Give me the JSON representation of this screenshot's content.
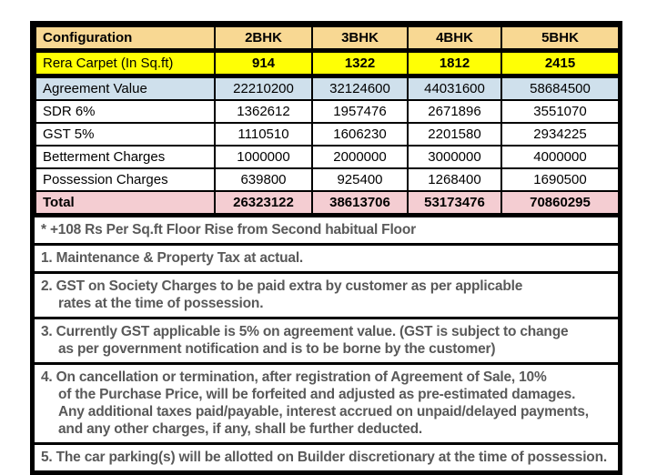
{
  "colors": {
    "header_bg": "#F8D893",
    "carpet_bg": "#FFFF05",
    "agreement_bg": "#CFE0EC",
    "total_bg": "#F4CDD2",
    "border": "#000000",
    "table_text": "#000000",
    "note_text": "#595959"
  },
  "table": {
    "header": {
      "label": "Configuration",
      "columns": [
        "2BHK",
        "3BHK",
        "4BHK",
        "5BHK"
      ]
    },
    "rows": [
      {
        "label": "Rera Carpet (In Sq.ft)",
        "values": [
          "914",
          "1322",
          "1812",
          "2415"
        ],
        "bg": "carpet"
      },
      {
        "label": "Agreement Value",
        "values": [
          "22210200",
          "32124600",
          "44031600",
          "58684500"
        ],
        "bg": "agreement"
      },
      {
        "label": "SDR 6%",
        "values": [
          "1362612",
          "1957476",
          "2671896",
          "3551070"
        ],
        "bg": "white"
      },
      {
        "label": "GST 5%",
        "values": [
          "1110510",
          "1606230",
          "2201580",
          "2934225"
        ],
        "bg": "white"
      },
      {
        "label": "Betterment Charges",
        "values": [
          "1000000",
          "2000000",
          "3000000",
          "4000000"
        ],
        "bg": "white"
      },
      {
        "label": "Possession Charges",
        "values": [
          "639800",
          "925400",
          "1268400",
          "1690500"
        ],
        "bg": "white"
      },
      {
        "label": "Total",
        "values": [
          "26323122",
          "38613706",
          "53173476",
          "70860295"
        ],
        "bg": "total"
      }
    ]
  },
  "notes": [
    {
      "id": "floor-rise",
      "lines": [
        "* +108 Rs Per Sq.ft Floor Rise from Second habitual Floor"
      ]
    },
    {
      "id": "note-1",
      "lines": [
        "1. Maintenance & Property Tax at actual."
      ]
    },
    {
      "id": "note-2",
      "lines": [
        "2. GST on Society Charges to be paid extra by customer as per applicable",
        "rates at the time of possession."
      ]
    },
    {
      "id": "note-3",
      "lines": [
        "3. Currently GST applicable is 5% on agreement value. (GST is subject to change",
        "as per government notification and is to be borne by the customer)"
      ]
    },
    {
      "id": "note-4",
      "lines": [
        "4. On cancellation or termination, after registration of Agreement of Sale, 10%",
        "of the Purchase Price, will be forfeited and adjusted as pre-estimated damages.",
        "Any additional taxes paid/payable, interest accrued on unpaid/delayed payments,",
        "and any other charges, if any, shall be further deducted."
      ]
    },
    {
      "id": "note-5",
      "lines": [
        "5. The car parking(s) will be allotted on Builder discretionary at the time of possession."
      ]
    }
  ]
}
